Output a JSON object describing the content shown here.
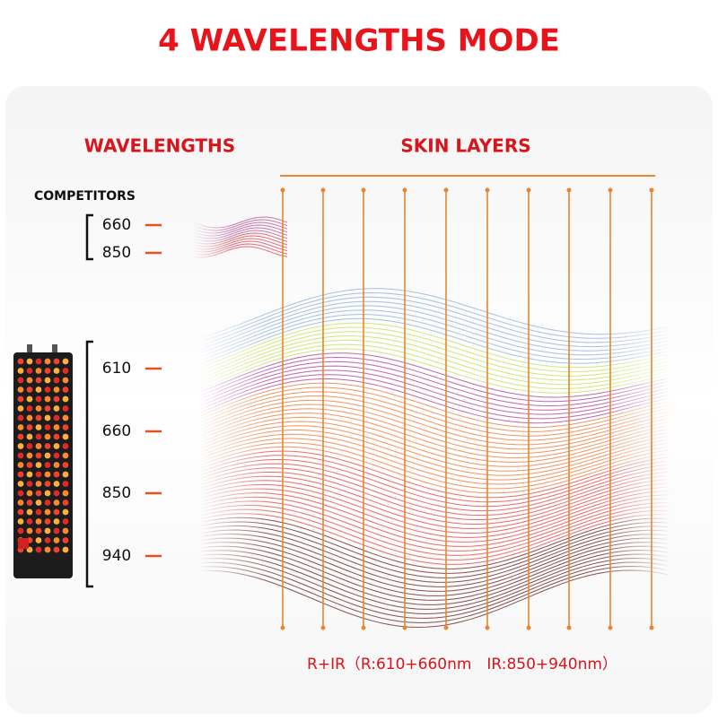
{
  "header": {
    "title": "4 WAVELENGTHS MODE"
  },
  "columns": {
    "left": "WAVELENGTHS",
    "right": "SKIN LAYERS"
  },
  "competitors": {
    "label": "COMPETITORS",
    "wavelengths": [
      "660",
      "850"
    ]
  },
  "device": {
    "wavelengths": [
      "610",
      "660",
      "850",
      "940"
    ]
  },
  "footer": "R+IR（R:610+660nm　IR:850+940nm）"
}
